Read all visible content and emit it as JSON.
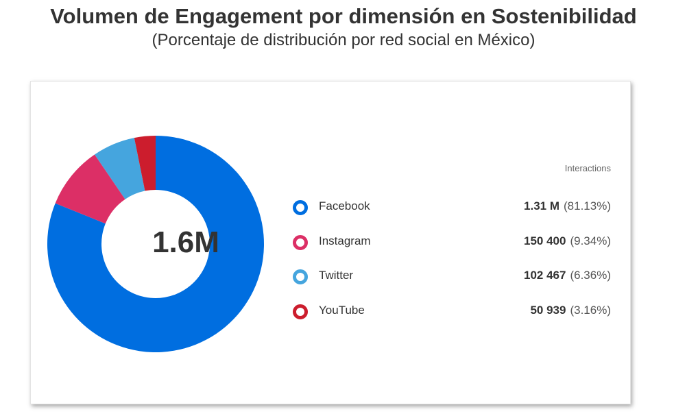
{
  "chart_data": {
    "type": "pie",
    "variant": "donut",
    "title": "Volumen de Engagement por dimensión en Sostenibilidad",
    "subtitle": "(Porcentaje de distribución por red social en México)",
    "center_label": "1.6M",
    "column_header": "Interactions",
    "slices": [
      {
        "label": "Facebook",
        "value_text": "1.31 M",
        "pct_text": "(81.13%)",
        "percent": 81.13,
        "color": "#006ee0"
      },
      {
        "label": "Instagram",
        "value_text": "150 400",
        "pct_text": "(9.34%)",
        "percent": 9.34,
        "color": "#dc2f66"
      },
      {
        "label": "Twitter",
        "value_text": "102 467",
        "pct_text": "(6.36%)",
        "percent": 6.36,
        "color": "#45a5de"
      },
      {
        "label": "YouTube",
        "value_text": "50 939",
        "pct_text": "(3.16%)",
        "percent": 3.16,
        "color": "#cc1d2d"
      }
    ]
  }
}
